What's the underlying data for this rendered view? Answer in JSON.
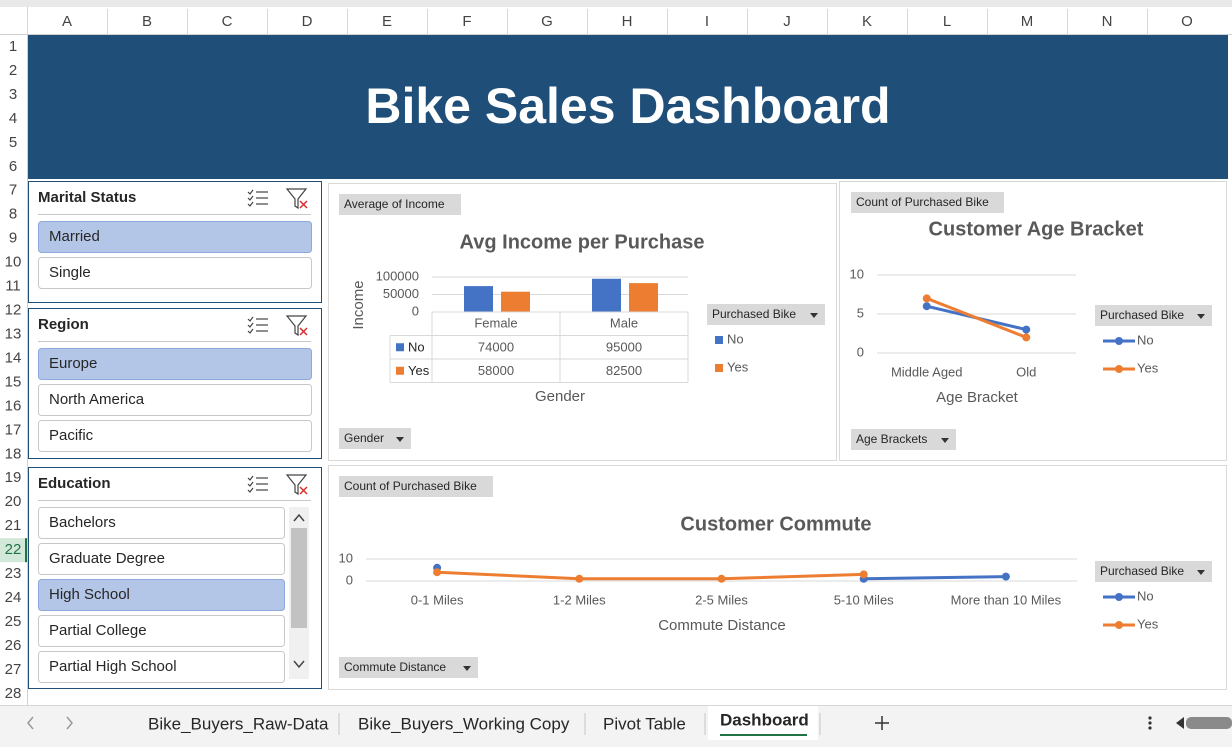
{
  "column_headers": [
    "A",
    "B",
    "C",
    "D",
    "E",
    "F",
    "G",
    "H",
    "I",
    "J",
    "K",
    "L",
    "M",
    "N",
    "O"
  ],
  "row_headers": [
    1,
    2,
    3,
    4,
    5,
    6,
    7,
    8,
    9,
    10,
    11,
    12,
    13,
    14,
    15,
    16,
    17,
    18,
    19,
    20,
    21,
    22,
    23,
    24,
    25,
    26,
    27,
    28
  ],
  "active_row": 22,
  "banner_title": "Bike Sales Dashboard",
  "slicers": [
    {
      "title": "Marital Status",
      "items": [
        {
          "label": "Married",
          "selected": true
        },
        {
          "label": "Single",
          "selected": false
        }
      ]
    },
    {
      "title": "Region",
      "items": [
        {
          "label": "Europe",
          "selected": true
        },
        {
          "label": "North America",
          "selected": false
        },
        {
          "label": "Pacific",
          "selected": false
        }
      ]
    },
    {
      "title": "Education",
      "items": [
        {
          "label": "Bachelors",
          "selected": false
        },
        {
          "label": "Graduate Degree",
          "selected": false
        },
        {
          "label": "High School",
          "selected": true
        },
        {
          "label": "Partial College",
          "selected": false
        },
        {
          "label": "Partial High School",
          "selected": false
        }
      ]
    }
  ],
  "chart_data": [
    {
      "type": "bar",
      "title": "Avg Income per Purchase",
      "value_field": "Average of Income",
      "axis_field": "Gender",
      "legend_title": "Purchased Bike",
      "xlabel": "Gender",
      "ylabel": "Income",
      "categories": [
        "Female",
        "Male"
      ],
      "series": [
        {
          "name": "No",
          "color": "#4472c4",
          "values": [
            74000,
            95000
          ]
        },
        {
          "name": "Yes",
          "color": "#ed7d31",
          "values": [
            58000,
            82500
          ]
        }
      ],
      "ylim": [
        0,
        100000
      ],
      "yticks": [
        0,
        50000,
        100000
      ],
      "grid": true,
      "data_table": true
    },
    {
      "type": "line",
      "title": "Customer Age Bracket",
      "value_field": "Count of Purchased Bike",
      "axis_field": "Age Brackets",
      "legend_title": "Purchased Bike",
      "xlabel": "Age Bracket",
      "categories": [
        "Middle Aged",
        "Old"
      ],
      "series": [
        {
          "name": "No",
          "color": "#4472c4",
          "values": [
            6,
            3
          ]
        },
        {
          "name": "Yes",
          "color": "#ed7d31",
          "values": [
            7,
            2
          ]
        }
      ],
      "ylim": [
        0,
        10
      ],
      "yticks": [
        0,
        5,
        10
      ],
      "grid": true
    },
    {
      "type": "line",
      "title": "Customer Commute",
      "value_field": "Count of Purchased Bike",
      "axis_field": "Commute Distance",
      "legend_title": "Purchased Bike",
      "xlabel": "Commute Distance",
      "categories": [
        "0-1 Miles",
        "1-2 Miles",
        "2-5 Miles",
        "5-10 Miles",
        "More than 10 Miles"
      ],
      "series": [
        {
          "name": "No",
          "color": "#4472c4",
          "values": [
            6,
            null,
            null,
            1,
            2
          ]
        },
        {
          "name": "Yes",
          "color": "#ed7d31",
          "values": [
            4,
            1,
            1,
            3,
            null
          ]
        }
      ],
      "ylim": [
        0,
        10
      ],
      "yticks": [
        0,
        10
      ],
      "grid": true
    }
  ],
  "sheet_tabs": [
    {
      "label": "Bike_Buyers_Raw-Data",
      "active": false
    },
    {
      "label": "Bike_Buyers_Working Copy",
      "active": false
    },
    {
      "label": "Pivot Table",
      "active": false
    },
    {
      "label": "Dashboard",
      "active": true
    }
  ]
}
